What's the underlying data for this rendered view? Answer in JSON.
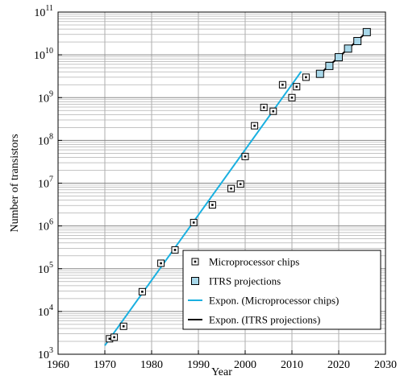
{
  "chart_data": {
    "type": "scatter",
    "title": "",
    "xlabel": "Year",
    "ylabel": "Number of transistors",
    "xlim": [
      1960,
      2030
    ],
    "ylim_log10": [
      3,
      11
    ],
    "y_scale": "log",
    "grid": true,
    "x_ticks": [
      1960,
      1970,
      1980,
      1990,
      2000,
      2010,
      2020,
      2030
    ],
    "y_tick_exponents": [
      3,
      4,
      5,
      6,
      7,
      8,
      9,
      10,
      11
    ],
    "y_tick_base": "10",
    "legend_position": "bottom-right",
    "series": [
      {
        "name": "Microprocessor chips",
        "marker": "square-dot",
        "color": "#000000",
        "points": [
          [
            1971,
            2300
          ],
          [
            1972,
            2500
          ],
          [
            1974,
            4500
          ],
          [
            1978,
            29000
          ],
          [
            1982,
            134000
          ],
          [
            1985,
            275000
          ],
          [
            1989,
            1200000
          ],
          [
            1993,
            3100000
          ],
          [
            1997,
            7500000
          ],
          [
            1999,
            9500000
          ],
          [
            2000,
            42000000
          ],
          [
            2002,
            220000000
          ],
          [
            2004,
            590000000
          ],
          [
            2006,
            480000000
          ],
          [
            2008,
            2000000000
          ],
          [
            2010,
            1000000000
          ],
          [
            2011,
            1800000000
          ],
          [
            2013,
            3000000000
          ]
        ]
      },
      {
        "name": "ITRS projections",
        "marker": "square-filled",
        "color": "#a8d8ea",
        "points": [
          [
            2016,
            3600000000
          ],
          [
            2018,
            5500000000
          ],
          [
            2020,
            8800000000
          ],
          [
            2022,
            14000000000
          ],
          [
            2024,
            21000000000
          ],
          [
            2026,
            34000000000
          ]
        ]
      },
      {
        "name": "Expon. (Microprocessor chips)",
        "type": "line",
        "color": "#1ab0e0",
        "points": [
          [
            1970,
            1600
          ],
          [
            2012,
            4100000000
          ]
        ]
      },
      {
        "name": "Expon. (ITRS projections)",
        "type": "line",
        "color": "#000000",
        "points": [
          [
            2016,
            3600000000
          ],
          [
            2026,
            34000000000
          ]
        ]
      }
    ]
  }
}
